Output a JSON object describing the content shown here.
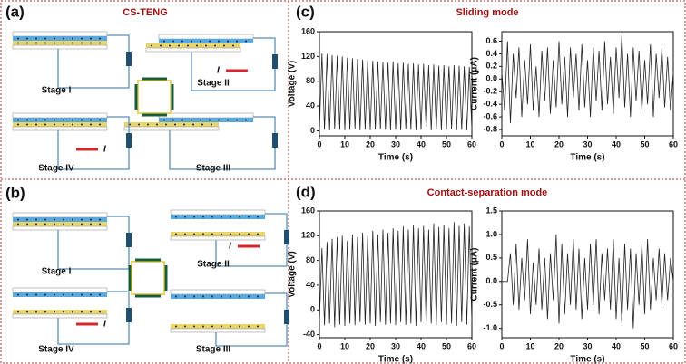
{
  "diagrams": [
    {
      "label": "(a)",
      "title": "CS-TENG",
      "stages": [
        "Stage I",
        "Stage II",
        "Stage III",
        "Stage IV"
      ],
      "current_symbol": "I"
    },
    {
      "label": "(b)",
      "stages": [
        "Stage I",
        "Stage II",
        "Stage III",
        "Stage IV"
      ],
      "current_symbol": "I"
    }
  ],
  "panels": [
    {
      "label": "(c)",
      "title": "Sliding mode"
    },
    {
      "label": "(d)",
      "title": "Contact-separation mode"
    }
  ],
  "chart_data": [
    {
      "type": "line",
      "xlabel": "Time (s)",
      "ylabel": "Voltage (V)",
      "color": "#222222",
      "xlim": [
        0,
        60
      ],
      "xticks": [
        0,
        10,
        20,
        30,
        40,
        50,
        60
      ],
      "ylim": [
        -8,
        160
      ],
      "yticks": [
        0,
        40,
        80,
        120,
        160
      ],
      "x": [
        0,
        1,
        2,
        3,
        4,
        5,
        6,
        7,
        8,
        9,
        10,
        11,
        12,
        13,
        14,
        15,
        16,
        17,
        18,
        19,
        20,
        21,
        22,
        23,
        24,
        25,
        26,
        27,
        28,
        29,
        30,
        31,
        32,
        33,
        34,
        35,
        36,
        37,
        38,
        39,
        40,
        41,
        42,
        43,
        44,
        45,
        46,
        47,
        48,
        49,
        50,
        51,
        52,
        53,
        54,
        55,
        56,
        57,
        58,
        59,
        60
      ],
      "values": [
        0,
        125,
        2,
        124,
        1,
        122,
        3,
        121,
        2,
        120,
        1,
        118,
        2,
        117,
        3,
        116,
        1,
        115,
        2,
        114,
        1,
        113,
        2,
        112,
        3,
        111,
        2,
        110,
        1,
        112,
        2,
        109,
        1,
        110,
        3,
        108,
        2,
        109,
        1,
        107,
        2,
        108,
        3,
        106,
        1,
        107,
        2,
        105,
        1,
        106,
        2,
        104,
        3,
        106,
        1,
        105,
        2,
        104,
        1,
        103,
        2
      ]
    },
    {
      "type": "line",
      "xlabel": "Time (s)",
      "ylabel": "Current (μA)",
      "color": "#222222",
      "xlim": [
        0,
        60
      ],
      "xticks": [
        0,
        10,
        20,
        30,
        40,
        50,
        60
      ],
      "ylim": [
        -0.9,
        0.75
      ],
      "yticks": [
        -0.8,
        -0.6,
        -0.4,
        -0.2,
        {
          "value": 0,
          "label": "0.0"
        },
        0.2,
        0.4,
        0.6
      ],
      "x": [
        0,
        1,
        2,
        3,
        4,
        5,
        6,
        7,
        8,
        9,
        10,
        11,
        12,
        13,
        14,
        15,
        16,
        17,
        18,
        19,
        20,
        21,
        22,
        23,
        24,
        25,
        26,
        27,
        28,
        29,
        30,
        31,
        32,
        33,
        34,
        35,
        36,
        37,
        38,
        39,
        40,
        41,
        42,
        43,
        44,
        45,
        46,
        47,
        48,
        49,
        50,
        51,
        52,
        53,
        54,
        55,
        56,
        57,
        58,
        59,
        60
      ],
      "values": [
        0.1,
        -0.5,
        0.6,
        -0.7,
        0.4,
        -0.3,
        0.5,
        -0.6,
        0.3,
        -0.4,
        0.55,
        -0.5,
        0.2,
        -0.6,
        0.45,
        -0.35,
        0.5,
        -0.55,
        0.3,
        -0.45,
        0.6,
        -0.4,
        0.35,
        -0.6,
        0.5,
        -0.3,
        0.4,
        -0.5,
        0.55,
        -0.45,
        0.3,
        -0.6,
        0.5,
        -0.35,
        0.45,
        -0.5,
        0.6,
        -0.4,
        0.35,
        -0.55,
        0.5,
        -0.3,
        0.7,
        -0.45,
        0.4,
        -0.6,
        0.5,
        -0.35,
        0.45,
        -0.5,
        0.3,
        -0.4,
        0.55,
        -0.6,
        0.4,
        -0.3,
        0.5,
        -0.45,
        0.35,
        -0.5,
        0.1
      ]
    },
    {
      "type": "line",
      "xlabel": "Time (s)",
      "ylabel": "Voltage (V)",
      "color": "#222222",
      "xlim": [
        0,
        60
      ],
      "xticks": [
        0,
        10,
        20,
        30,
        40,
        50,
        60
      ],
      "ylim": [
        -45,
        160
      ],
      "yticks": [
        -40,
        0,
        40,
        80,
        120,
        160
      ],
      "x": [
        0,
        1,
        2,
        3,
        4,
        5,
        6,
        7,
        8,
        9,
        10,
        11,
        12,
        13,
        14,
        15,
        16,
        17,
        18,
        19,
        20,
        21,
        22,
        23,
        24,
        25,
        26,
        27,
        28,
        29,
        30,
        31,
        32,
        33,
        34,
        35,
        36,
        37,
        38,
        39,
        40,
        41,
        42,
        43,
        44,
        45,
        46,
        47,
        48,
        49,
        50,
        51,
        52,
        53,
        54,
        55,
        56,
        57,
        58,
        59,
        60
      ],
      "values": [
        -20,
        100,
        -25,
        110,
        -22,
        115,
        -28,
        118,
        -24,
        120,
        -26,
        112,
        -22,
        122,
        -25,
        118,
        -20,
        125,
        -24,
        120,
        -22,
        128,
        -26,
        122,
        -20,
        130,
        -24,
        125,
        -22,
        132,
        -25,
        128,
        -20,
        135,
        -24,
        130,
        -22,
        138,
        -26,
        132,
        -20,
        136,
        -24,
        130,
        -22,
        140,
        -25,
        134,
        -20,
        138,
        -24,
        132,
        -22,
        142,
        -26,
        136,
        -20,
        140,
        -24,
        135,
        -20
      ]
    },
    {
      "type": "line",
      "xlabel": "Time (s)",
      "ylabel": "Current (μA)",
      "color": "#222222",
      "xlim": [
        0,
        60
      ],
      "xticks": [
        0,
        10,
        20,
        30,
        40,
        50,
        60
      ],
      "ylim": [
        -1.2,
        1.5
      ],
      "yticks": [
        {
          "value": -1,
          "label": "-1.0"
        },
        -0.5,
        {
          "value": 0,
          "label": "0.0"
        },
        0.5,
        {
          "value": 1,
          "label": "1.0"
        },
        1.5
      ],
      "x": [
        0,
        1,
        2,
        3,
        4,
        5,
        6,
        7,
        8,
        9,
        10,
        11,
        12,
        13,
        14,
        15,
        16,
        17,
        18,
        19,
        20,
        21,
        22,
        23,
        24,
        25,
        26,
        27,
        28,
        29,
        30,
        31,
        32,
        33,
        34,
        35,
        36,
        37,
        38,
        39,
        40,
        41,
        42,
        43,
        44,
        45,
        46,
        47,
        48,
        49,
        50,
        51,
        52,
        53,
        54,
        55,
        56,
        57,
        58,
        59,
        60
      ],
      "values": [
        0,
        0,
        0,
        0.6,
        -0.5,
        0.8,
        -0.6,
        0.5,
        -0.4,
        0.9,
        -0.7,
        0.4,
        -0.5,
        0.7,
        -0.6,
        0.5,
        -0.8,
        0.6,
        -0.4,
        1.0,
        -0.9,
        0.8,
        -0.7,
        0.6,
        -0.5,
        0.9,
        -0.6,
        0.7,
        -0.8,
        0.5,
        -0.6,
        0.8,
        -0.5,
        0.9,
        -0.7,
        0.6,
        -0.4,
        0.7,
        -0.6,
        0.9,
        -0.8,
        0.5,
        -0.9,
        0.8,
        -0.6,
        0.7,
        -1.0,
        0.6,
        -0.5,
        0.8,
        -0.7,
        0.9,
        -0.6,
        0.5,
        -0.4,
        0.7,
        -0.5,
        0.6,
        -0.4,
        0.5,
        0
      ]
    }
  ]
}
